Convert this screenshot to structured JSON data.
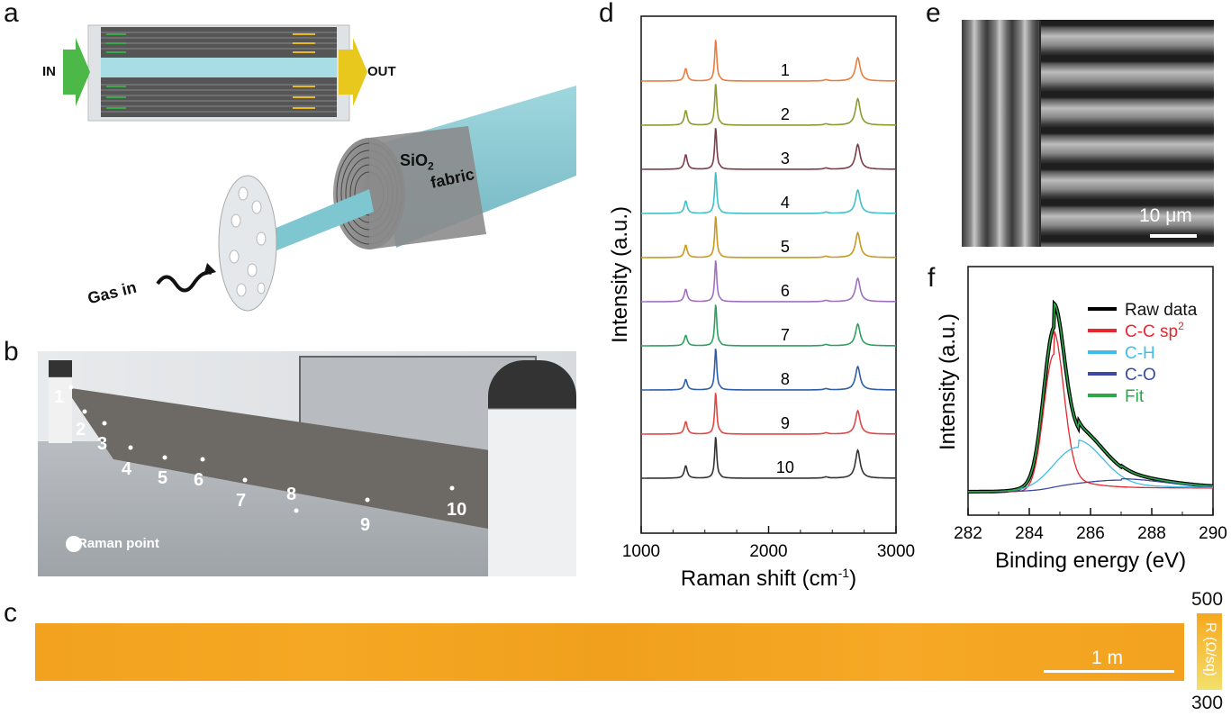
{
  "panels": {
    "a": "a",
    "b": "b",
    "c": "c",
    "d": "d",
    "e": "e",
    "f": "f"
  },
  "panel_a": {
    "in_label": "IN",
    "out_label": "OUT",
    "sio2_label": "SiO",
    "sio2_sub": "2",
    "fabric_label": "fabric",
    "gas_label": "Gas in"
  },
  "panel_b": {
    "points": [
      "1",
      "2",
      "3",
      "4",
      "5",
      "6",
      "7",
      "8",
      "9",
      "10"
    ],
    "legend": "Raman point"
  },
  "panel_c": {
    "scale_label": "1 m",
    "cb_max": "500",
    "cb_min": "300",
    "cb_label": "R (Ω/sq)",
    "colors": [
      "#f6a31c",
      "#f4e070"
    ]
  },
  "panel_e": {
    "scale_label": "10 μm"
  },
  "chart_data": [
    {
      "id": "d",
      "type": "line",
      "xlabel": "Raman shift (cm",
      "xlabel_sup": "-1",
      "xlabel_end": ")",
      "ylabel": "Intensity (a.u.)",
      "xlim": [
        1000,
        3000
      ],
      "xticks": [
        "1000",
        "2000",
        "3000"
      ],
      "peaks": {
        "D": 1350,
        "G": 1585,
        "2D": 2700
      },
      "series": [
        {
          "name": "1",
          "color": "#e87d3e",
          "ratio": [
            0.3,
            1.0,
            0.75
          ]
        },
        {
          "name": "2",
          "color": "#8e9a2e",
          "ratio": [
            0.35,
            1.0,
            0.85
          ]
        },
        {
          "name": "3",
          "color": "#7a3d49",
          "ratio": [
            0.35,
            1.0,
            0.8
          ]
        },
        {
          "name": "4",
          "color": "#40c0c8",
          "ratio": [
            0.3,
            1.0,
            0.75
          ]
        },
        {
          "name": "5",
          "color": "#c89a20",
          "ratio": [
            0.3,
            1.0,
            0.8
          ]
        },
        {
          "name": "6",
          "color": "#a070c0",
          "ratio": [
            0.3,
            1.0,
            0.75
          ]
        },
        {
          "name": "7",
          "color": "#30a060",
          "ratio": [
            0.25,
            1.0,
            0.7
          ]
        },
        {
          "name": "8",
          "color": "#2e5ea8",
          "ratio": [
            0.25,
            1.0,
            0.75
          ]
        },
        {
          "name": "9",
          "color": "#e04848",
          "ratio": [
            0.3,
            1.0,
            0.75
          ]
        },
        {
          "name": "10",
          "color": "#333333",
          "ratio": [
            0.3,
            1.0,
            0.9
          ]
        }
      ]
    },
    {
      "id": "f",
      "type": "line",
      "xlabel": "Binding energy (eV)",
      "ylabel": "Intensity (a.u.)",
      "xlim": [
        282,
        290
      ],
      "xticks": [
        "282",
        "284",
        "286",
        "288",
        "290"
      ],
      "components": [
        {
          "name": "C-C sp",
          "name_sup": "2",
          "center": 284.8,
          "width": 0.33,
          "amp": 0.86,
          "color": "#e8262e"
        },
        {
          "name": "C-H",
          "center": 285.6,
          "width": 0.8,
          "amp": 0.26,
          "color": "#40bde8"
        },
        {
          "name": "C-O",
          "center": 287.0,
          "width": 1.4,
          "amp": 0.05,
          "color": "#3a4aa0"
        }
      ],
      "legend": [
        {
          "name": "Raw data",
          "color": "#000000"
        },
        {
          "name": "C-C sp",
          "sup": "2",
          "color": "#e8262e"
        },
        {
          "name": "C-H",
          "color": "#40bde8"
        },
        {
          "name": "C-O",
          "color": "#3a4aa0"
        },
        {
          "name": "Fit",
          "color": "#2aa84a"
        }
      ]
    }
  ]
}
